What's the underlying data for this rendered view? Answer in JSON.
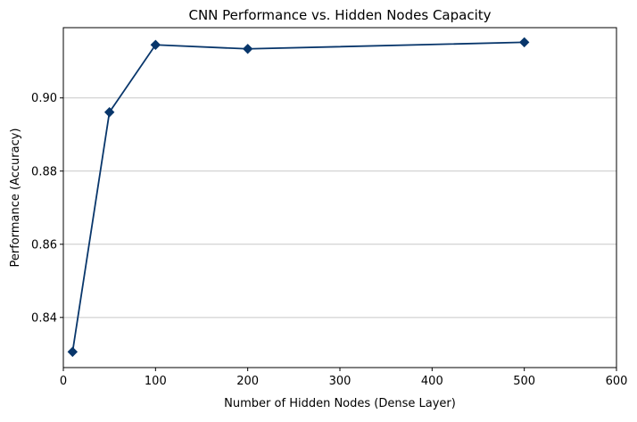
{
  "chart_data": {
    "type": "line",
    "title": "CNN Performance vs. Hidden Nodes Capacity",
    "xlabel": "Number of Hidden Nodes (Dense Layer)",
    "ylabel": "Performance (Accuracy)",
    "xlim": [
      0,
      600
    ],
    "ylim": [
      0.8263,
      0.9192
    ],
    "xticks": [
      0,
      100,
      200,
      300,
      400,
      500,
      600
    ],
    "xtick_labels": [
      "0",
      "100",
      "200",
      "300",
      "400",
      "500",
      "600"
    ],
    "yticks": [
      0.84,
      0.86,
      0.88,
      0.9
    ],
    "ytick_labels": [
      "0.84",
      "0.86",
      "0.88",
      "0.90"
    ],
    "grid": "horizontal",
    "marker": "diamond",
    "color": "#08366b",
    "series": [
      {
        "x": [
          10,
          50,
          100,
          200,
          500
        ],
        "y": [
          0.8306,
          0.8961,
          0.9145,
          0.9134,
          0.9152
        ]
      }
    ]
  }
}
